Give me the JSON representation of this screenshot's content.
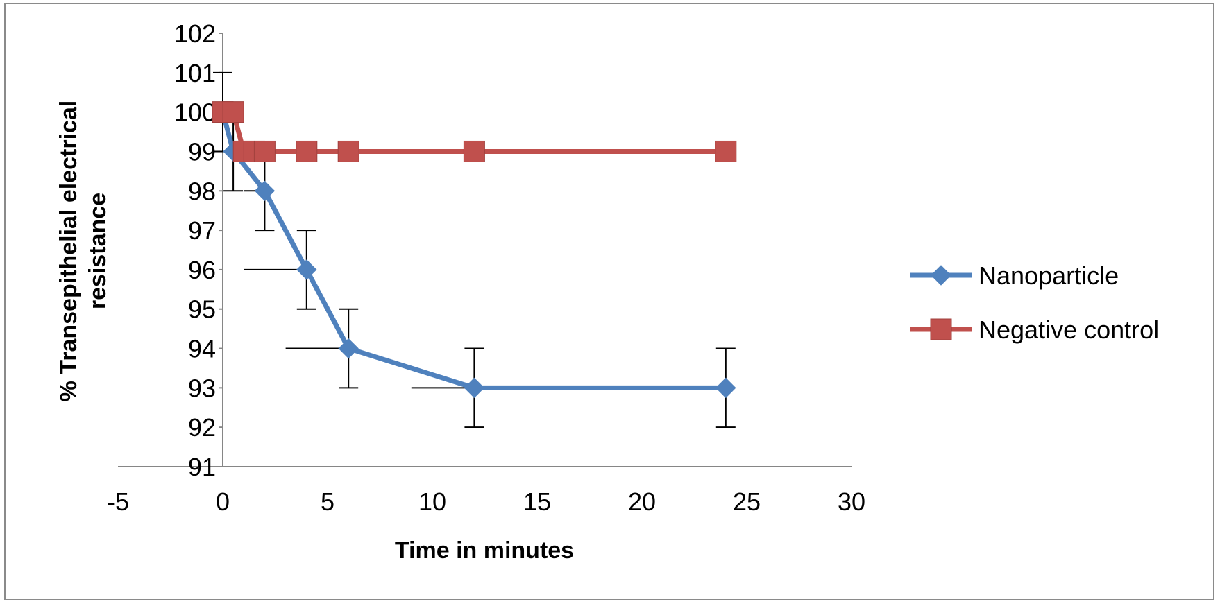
{
  "chart_data": {
    "type": "scatter",
    "xlabel": "Time in minutes",
    "ylabel_lines": [
      "% Transepithelial electrical",
      "resistance"
    ],
    "xlim": [
      -5,
      30
    ],
    "ylim": [
      91,
      102
    ],
    "x_ticks": [
      -5,
      0,
      5,
      10,
      15,
      20,
      25,
      30
    ],
    "y_ticks": [
      91,
      92,
      93,
      94,
      95,
      96,
      97,
      98,
      99,
      100,
      101,
      102
    ],
    "legend_position": "right",
    "series": [
      {
        "name": "Nanoparticle",
        "color": "#4f81bd",
        "marker": "diamond",
        "x": [
          0,
          0.5,
          2,
          4,
          6,
          12,
          24
        ],
        "y": [
          100,
          99,
          98,
          96,
          94,
          93,
          93
        ],
        "y_err": [
          1,
          1,
          1,
          1,
          1,
          1,
          1
        ],
        "x_err": [
          0,
          0,
          1,
          3,
          3,
          3,
          0
        ]
      },
      {
        "name": "Negative control",
        "color": "#c0504d",
        "marker": "square",
        "x": [
          0,
          0.5,
          1,
          1.5,
          2,
          4,
          6,
          12,
          24
        ],
        "y": [
          100,
          100,
          99,
          99,
          99,
          99,
          99,
          99,
          99
        ]
      }
    ]
  }
}
